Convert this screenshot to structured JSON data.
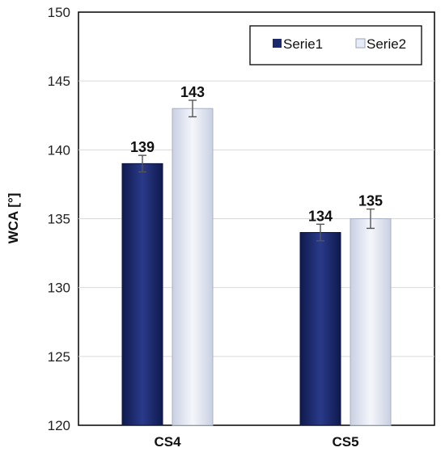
{
  "chart_data": {
    "type": "bar",
    "categories": [
      "CS4",
      "CS5"
    ],
    "series": [
      {
        "name": "Serie1",
        "values": [
          139,
          134
        ],
        "errors": [
          0.6,
          0.6
        ],
        "color": "#1c2a6b"
      },
      {
        "name": "Serie2",
        "values": [
          143,
          135
        ],
        "errors": [
          0.6,
          0.7
        ],
        "color": "#e8ecf6"
      }
    ],
    "data_labels": [
      "139",
      "134",
      "143",
      "135"
    ],
    "title": "",
    "xlabel": "",
    "ylabel": "WCA [°]",
    "ylim": [
      120,
      150
    ],
    "yticks": [
      120,
      125,
      130,
      135,
      140,
      145,
      150
    ],
    "ytick_labels": [
      "120",
      "125",
      "130",
      "135",
      "140",
      "145",
      "150"
    ],
    "grid": true,
    "legend_position": "top-right"
  }
}
